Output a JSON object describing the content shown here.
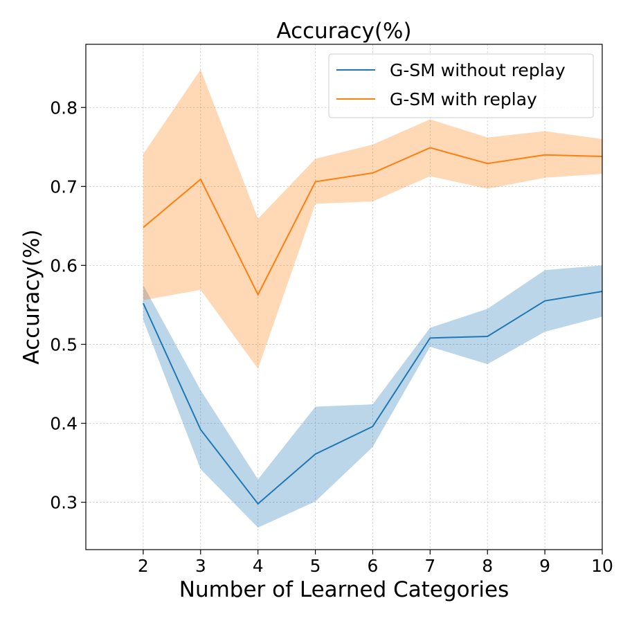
{
  "chart_data": {
    "type": "line",
    "title": "Accuracy(%)",
    "xlabel": "Number of Learned Categories",
    "ylabel": "Accuracy(%)",
    "x": [
      2,
      3,
      4,
      5,
      6,
      7,
      8,
      9,
      10
    ],
    "xlim": [
      1,
      10
    ],
    "ylim": [
      0.24,
      0.88
    ],
    "xticks": [
      2,
      3,
      4,
      5,
      6,
      7,
      8,
      9,
      10
    ],
    "yticks": [
      0.3,
      0.4,
      0.5,
      0.6,
      0.7,
      0.8
    ],
    "ytick_labels": [
      "0.3",
      "0.4",
      "0.5",
      "0.6",
      "0.7",
      "0.8"
    ],
    "grid": true,
    "legend_position": "top-right",
    "series": [
      {
        "name": "G-SM without replay",
        "color": "#1f77b4",
        "band_color": "#1f77b4",
        "values": [
          0.552,
          0.392,
          0.298,
          0.361,
          0.396,
          0.508,
          0.51,
          0.555,
          0.567
        ],
        "lower": [
          0.531,
          0.342,
          0.268,
          0.301,
          0.37,
          0.497,
          0.475,
          0.516,
          0.535
        ],
        "upper": [
          0.575,
          0.442,
          0.329,
          0.421,
          0.424,
          0.521,
          0.545,
          0.594,
          0.6
        ]
      },
      {
        "name": "G-SM with replay",
        "color": "#ff7f0e",
        "band_color": "#ff7f0e",
        "values": [
          0.648,
          0.709,
          0.563,
          0.706,
          0.717,
          0.749,
          0.729,
          0.74,
          0.738
        ],
        "lower": [
          0.556,
          0.569,
          0.469,
          0.678,
          0.681,
          0.713,
          0.697,
          0.711,
          0.716
        ],
        "upper": [
          0.741,
          0.848,
          0.659,
          0.735,
          0.753,
          0.785,
          0.762,
          0.77,
          0.76
        ]
      }
    ]
  }
}
